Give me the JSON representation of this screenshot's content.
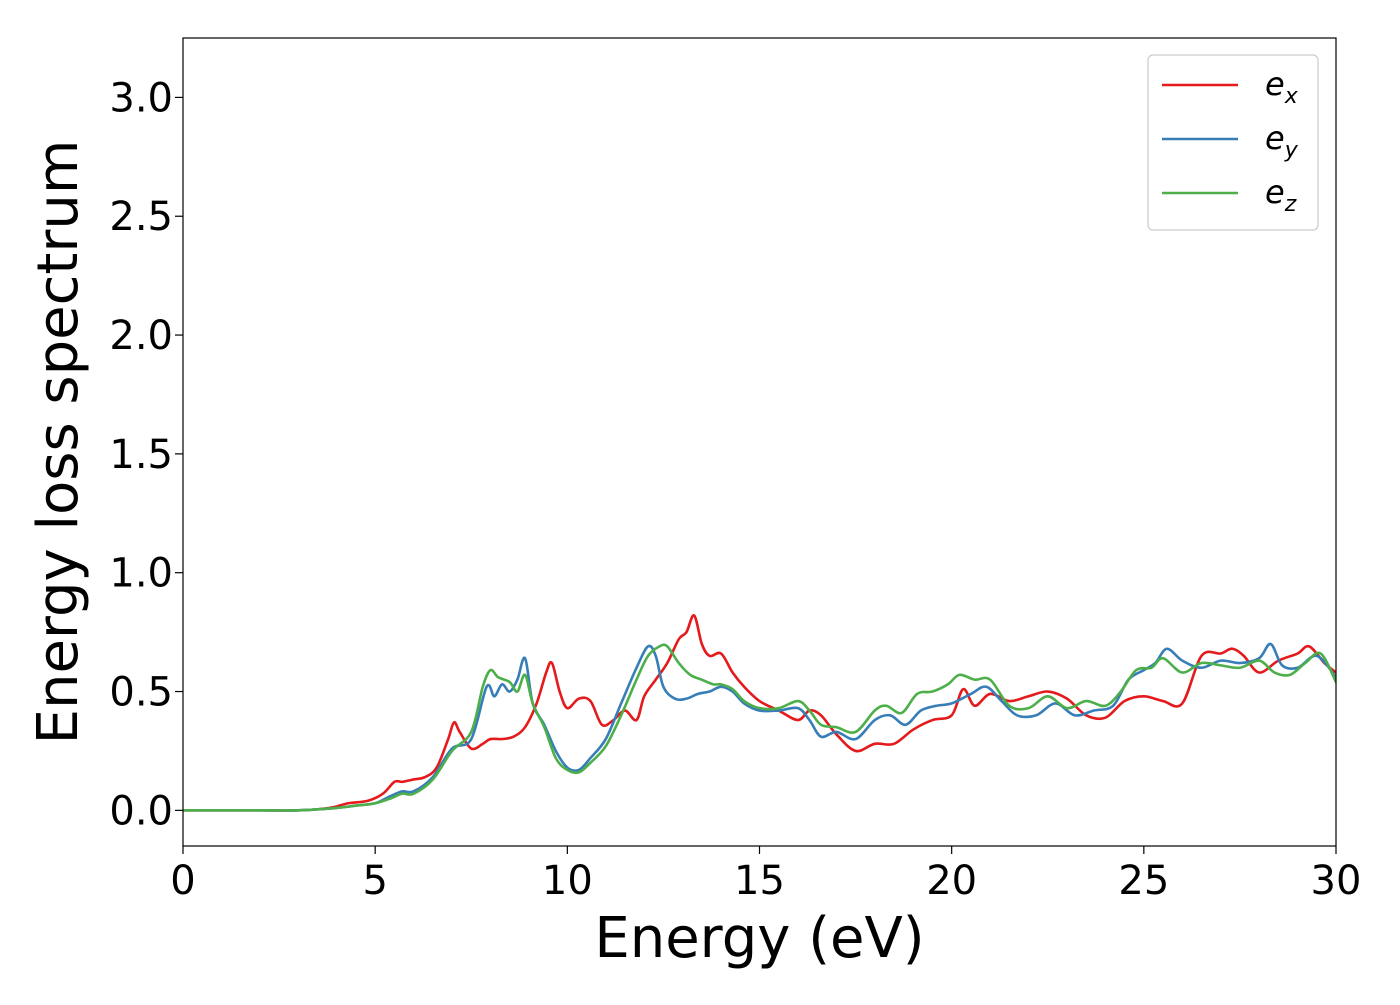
{
  "chart_data": {
    "type": "line",
    "xlabel": "Energy (eV)",
    "ylabel": "Energy loss spectrum",
    "xlim": [
      0,
      30
    ],
    "ylim": [
      -0.15,
      3.25
    ],
    "xticks": [
      0,
      5,
      10,
      15,
      20,
      25,
      30
    ],
    "xtick_labels": [
      "0",
      "5",
      "10",
      "15",
      "20",
      "25",
      "30"
    ],
    "yticks": [
      0.0,
      0.5,
      1.0,
      1.5,
      2.0,
      2.5,
      3.0
    ],
    "ytick_labels": [
      "0.0",
      "0.5",
      "1.0",
      "1.5",
      "2.0",
      "2.5",
      "3.0"
    ],
    "grid": false,
    "legend_position": "top-right",
    "series": [
      {
        "name": "e_x",
        "legend_base": "e",
        "legend_sub": "x",
        "color": "#e41a1c",
        "x": [
          0,
          1,
          2,
          3,
          3.8,
          4.3,
          4.8,
          5.2,
          5.5,
          5.7,
          6.0,
          6.3,
          6.6,
          6.9,
          7.05,
          7.2,
          7.5,
          7.8,
          8.0,
          8.3,
          8.6,
          8.9,
          9.2,
          9.45,
          9.6,
          9.8,
          10.0,
          10.3,
          10.6,
          10.9,
          11.2,
          11.5,
          11.8,
          12.0,
          12.3,
          12.6,
          12.9,
          13.1,
          13.3,
          13.5,
          13.7,
          14.0,
          14.3,
          14.6,
          15.0,
          15.5,
          16.0,
          16.3,
          16.6,
          17.0,
          17.5,
          18.0,
          18.5,
          19.0,
          19.5,
          20.0,
          20.3,
          20.6,
          21.0,
          21.5,
          22.0,
          22.5,
          23.0,
          23.5,
          24.0,
          24.5,
          25.0,
          25.5,
          26.0,
          26.5,
          27.0,
          27.3,
          27.6,
          28.0,
          28.5,
          29.0,
          29.3,
          29.7,
          30.0
        ],
        "y": [
          0,
          0,
          0,
          0,
          0.01,
          0.03,
          0.04,
          0.07,
          0.12,
          0.12,
          0.13,
          0.14,
          0.18,
          0.3,
          0.37,
          0.33,
          0.26,
          0.28,
          0.3,
          0.3,
          0.31,
          0.35,
          0.45,
          0.58,
          0.62,
          0.5,
          0.43,
          0.47,
          0.46,
          0.36,
          0.38,
          0.42,
          0.38,
          0.48,
          0.55,
          0.62,
          0.72,
          0.75,
          0.82,
          0.7,
          0.65,
          0.66,
          0.58,
          0.52,
          0.46,
          0.42,
          0.38,
          0.42,
          0.4,
          0.32,
          0.25,
          0.28,
          0.28,
          0.34,
          0.38,
          0.4,
          0.51,
          0.44,
          0.49,
          0.46,
          0.48,
          0.5,
          0.47,
          0.4,
          0.39,
          0.46,
          0.48,
          0.46,
          0.45,
          0.65,
          0.66,
          0.68,
          0.65,
          0.58,
          0.63,
          0.66,
          0.69,
          0.62,
          0.58
        ]
      },
      {
        "name": "e_y",
        "legend_base": "e",
        "legend_sub": "y",
        "color": "#377eb8",
        "x": [
          0,
          1,
          2,
          3,
          4,
          4.5,
          5,
          5.4,
          5.7,
          6.0,
          6.5,
          7.0,
          7.5,
          7.9,
          8.1,
          8.3,
          8.5,
          8.7,
          8.9,
          9.1,
          9.4,
          9.7,
          10.0,
          10.3,
          10.6,
          11.0,
          11.4,
          11.8,
          12.1,
          12.3,
          12.5,
          12.8,
          13.1,
          13.4,
          13.7,
          14.0,
          14.3,
          14.6,
          15.0,
          15.5,
          16.0,
          16.3,
          16.6,
          17.0,
          17.5,
          18.0,
          18.4,
          18.8,
          19.2,
          19.6,
          20.0,
          20.5,
          20.9,
          21.3,
          21.7,
          22.2,
          22.7,
          23.2,
          23.7,
          24.2,
          24.6,
          25.0,
          25.3,
          25.6,
          26.0,
          26.5,
          27.0,
          27.5,
          28.0,
          28.3,
          28.6,
          29.0,
          29.5,
          30.0
        ],
        "y": [
          0,
          0,
          0,
          0,
          0.01,
          0.02,
          0.03,
          0.06,
          0.08,
          0.08,
          0.14,
          0.26,
          0.3,
          0.52,
          0.48,
          0.53,
          0.5,
          0.55,
          0.64,
          0.45,
          0.36,
          0.25,
          0.18,
          0.17,
          0.22,
          0.3,
          0.45,
          0.6,
          0.69,
          0.65,
          0.52,
          0.47,
          0.47,
          0.49,
          0.5,
          0.52,
          0.5,
          0.45,
          0.42,
          0.42,
          0.43,
          0.38,
          0.31,
          0.33,
          0.3,
          0.38,
          0.4,
          0.36,
          0.42,
          0.44,
          0.45,
          0.49,
          0.52,
          0.46,
          0.4,
          0.4,
          0.45,
          0.4,
          0.42,
          0.44,
          0.55,
          0.59,
          0.62,
          0.68,
          0.63,
          0.6,
          0.63,
          0.62,
          0.64,
          0.7,
          0.61,
          0.6,
          0.65,
          0.56
        ]
      },
      {
        "name": "e_z",
        "legend_base": "e",
        "legend_sub": "z",
        "color": "#4daf4a",
        "x": [
          0,
          1,
          2,
          3,
          4,
          4.5,
          5,
          5.4,
          5.7,
          6.0,
          6.5,
          7.0,
          7.5,
          7.8,
          8.0,
          8.2,
          8.5,
          8.7,
          8.9,
          9.1,
          9.4,
          9.7,
          10.0,
          10.3,
          10.6,
          11.0,
          11.4,
          11.8,
          12.1,
          12.4,
          12.6,
          12.9,
          13.2,
          13.5,
          13.8,
          14.0,
          14.3,
          14.6,
          15.0,
          15.5,
          16.0,
          16.3,
          16.6,
          17.0,
          17.5,
          18.0,
          18.3,
          18.7,
          19.1,
          19.5,
          19.9,
          20.2,
          20.6,
          21.0,
          21.5,
          22.0,
          22.5,
          23.0,
          23.5,
          24.0,
          24.4,
          24.8,
          25.2,
          25.5,
          26.0,
          26.5,
          27.0,
          27.5,
          28.0,
          28.4,
          28.8,
          29.2,
          29.6,
          30.0
        ],
        "y": [
          0,
          0,
          0,
          0,
          0.01,
          0.02,
          0.03,
          0.05,
          0.07,
          0.07,
          0.13,
          0.25,
          0.33,
          0.52,
          0.59,
          0.56,
          0.54,
          0.5,
          0.57,
          0.45,
          0.35,
          0.22,
          0.17,
          0.16,
          0.2,
          0.27,
          0.4,
          0.55,
          0.65,
          0.69,
          0.69,
          0.62,
          0.57,
          0.55,
          0.53,
          0.53,
          0.51,
          0.46,
          0.43,
          0.43,
          0.46,
          0.42,
          0.36,
          0.35,
          0.33,
          0.42,
          0.44,
          0.41,
          0.49,
          0.5,
          0.53,
          0.57,
          0.55,
          0.55,
          0.44,
          0.43,
          0.48,
          0.43,
          0.46,
          0.44,
          0.5,
          0.59,
          0.6,
          0.64,
          0.58,
          0.62,
          0.61,
          0.6,
          0.63,
          0.58,
          0.57,
          0.62,
          0.66,
          0.54
        ]
      }
    ]
  }
}
